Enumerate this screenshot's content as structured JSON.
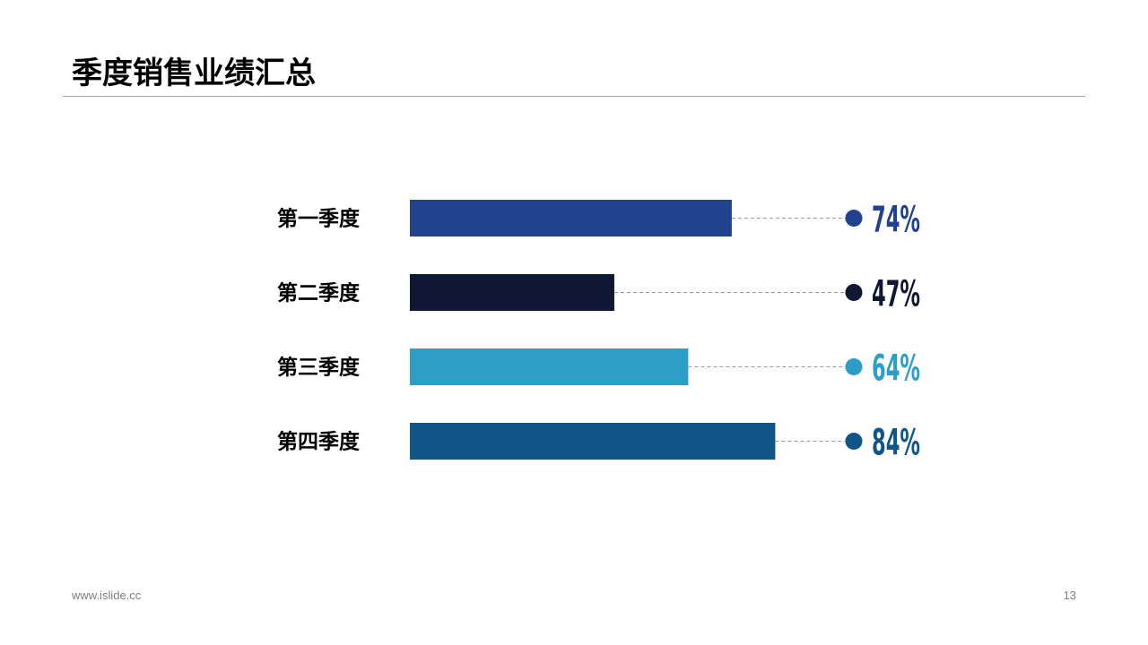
{
  "slide": {
    "title": "季度销售业绩汇总",
    "footer_url": "www.islide.cc",
    "page_number": "13"
  },
  "chart_data": {
    "type": "bar",
    "orientation": "horizontal",
    "title": "季度销售业绩汇总",
    "categories": [
      "第一季度",
      "第二季度",
      "第三季度",
      "第四季度"
    ],
    "values": [
      74,
      47,
      64,
      84
    ],
    "value_labels": [
      "74%",
      "47%",
      "64%",
      "84%"
    ],
    "unit": "%",
    "xlim": [
      0,
      100
    ],
    "colors": [
      "#22418f",
      "#0f1732",
      "#2d9fc7",
      "#105587"
    ],
    "grid": false,
    "legend": "none"
  }
}
